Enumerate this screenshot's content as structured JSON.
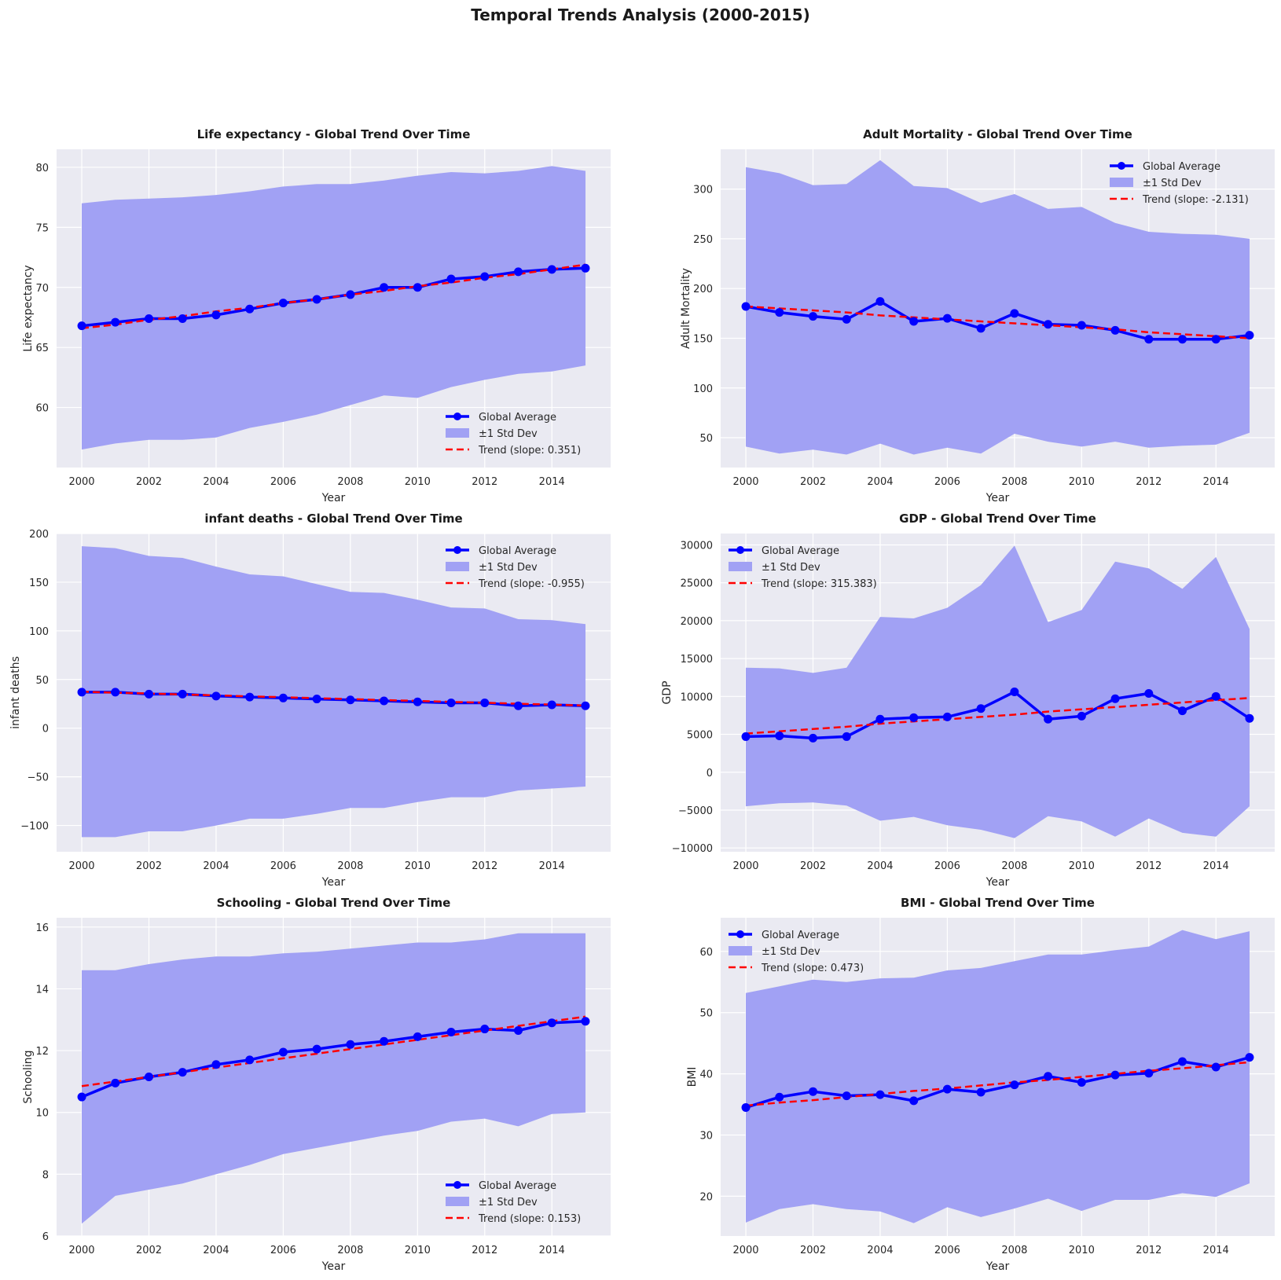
{
  "suptitle": "Temporal Trends Analysis (2000-2015)",
  "colors": {
    "panel_bg": "#EAEAF2",
    "grid": "#FFFFFF",
    "band": "#A1A1F4",
    "avg": "#0000FF",
    "trend": "#FF0000"
  },
  "years": [
    2000,
    2001,
    2002,
    2003,
    2004,
    2005,
    2006,
    2007,
    2008,
    2009,
    2010,
    2011,
    2012,
    2013,
    2014,
    2015
  ],
  "x_ticks": [
    2000,
    2002,
    2004,
    2006,
    2008,
    2010,
    2012,
    2014
  ],
  "chart_data": [
    {
      "type": "line",
      "title": "Life expectancy - Global Trend Over Time",
      "xlabel": "Year",
      "ylabel": "Life expectancy",
      "ylim": [
        55.0,
        81.5
      ],
      "yticks": [
        60,
        65,
        70,
        75,
        80
      ],
      "ytick_labels": [
        "60",
        "65",
        "70",
        "75",
        "80"
      ],
      "legend_loc": "lower-right",
      "series": [
        {
          "name": "Global Average",
          "values": [
            66.8,
            67.1,
            67.4,
            67.4,
            67.7,
            68.2,
            68.7,
            69.0,
            69.4,
            70.0,
            70.0,
            70.7,
            70.9,
            71.3,
            71.5,
            71.6
          ]
        },
        {
          "name": "±1 Std Dev",
          "upper": [
            77.0,
            77.3,
            77.4,
            77.5,
            77.7,
            78.0,
            78.4,
            78.6,
            78.6,
            78.9,
            79.3,
            79.6,
            79.5,
            79.7,
            80.1,
            79.7
          ],
          "lower": [
            56.5,
            57.0,
            57.3,
            57.3,
            57.5,
            58.3,
            58.8,
            59.4,
            60.2,
            61.0,
            60.8,
            61.7,
            62.3,
            62.8,
            63.0,
            63.5
          ]
        },
        {
          "name": "Trend (slope: 0.351)",
          "values": [
            66.6,
            66.9,
            67.3,
            67.6,
            68.0,
            68.3,
            68.7,
            69.0,
            69.4,
            69.7,
            70.1,
            70.4,
            70.8,
            71.1,
            71.5,
            71.9
          ]
        }
      ]
    },
    {
      "type": "line",
      "title": "Adult Mortality - Global Trend Over Time",
      "xlabel": "Year",
      "ylabel": "Adult Mortality",
      "ylim": [
        20,
        340
      ],
      "yticks": [
        50,
        100,
        150,
        200,
        250,
        300
      ],
      "ytick_labels": [
        "50",
        "100",
        "150",
        "200",
        "250",
        "300"
      ],
      "legend_loc": "upper-right",
      "series": [
        {
          "name": "Global Average",
          "values": [
            182,
            176,
            172,
            169,
            187,
            167,
            170,
            160,
            175,
            164,
            163,
            158,
            149,
            149,
            149,
            153
          ]
        },
        {
          "name": "±1 Std Dev",
          "upper": [
            322,
            316,
            304,
            305,
            329,
            303,
            301,
            286,
            295,
            280,
            282,
            266,
            257,
            255,
            254,
            250
          ],
          "lower": [
            41,
            34,
            38,
            33,
            44,
            33,
            40,
            34,
            54,
            46,
            41,
            46,
            40,
            42,
            43,
            55
          ]
        },
        {
          "name": "Trend (slope: -2.131)",
          "values": [
            182,
            180,
            178,
            176,
            173,
            171,
            169,
            167,
            165,
            163,
            161,
            159,
            156,
            154,
            152,
            150
          ]
        }
      ]
    },
    {
      "type": "line",
      "title": "infant deaths - Global Trend Over Time",
      "xlabel": "Year",
      "ylabel": "infant deaths",
      "ylim": [
        -127,
        200
      ],
      "yticks": [
        -100,
        -50,
        0,
        50,
        100,
        150,
        200
      ],
      "ytick_labels": [
        "−100",
        "−50",
        "0",
        "50",
        "100",
        "150",
        "200"
      ],
      "legend_loc": "upper-right",
      "series": [
        {
          "name": "Global Average",
          "values": [
            37,
            37,
            35,
            35,
            33,
            32,
            31,
            30,
            29,
            28,
            27,
            26,
            26,
            23,
            24,
            23
          ]
        },
        {
          "name": "±1 Std Dev",
          "upper": [
            187,
            185,
            177,
            175,
            166,
            158,
            156,
            148,
            140,
            139,
            132,
            124,
            123,
            112,
            111,
            107
          ],
          "lower": [
            -112,
            -112,
            -106,
            -106,
            -100,
            -93,
            -93,
            -88,
            -82,
            -82,
            -76,
            -71,
            -71,
            -64,
            -62,
            -60
          ]
        },
        {
          "name": "Trend (slope: -0.955)",
          "values": [
            37.5,
            36.5,
            35.6,
            34.6,
            33.7,
            32.7,
            31.8,
            30.8,
            29.9,
            28.9,
            28.0,
            27.0,
            26.1,
            25.1,
            24.2,
            23.2
          ]
        }
      ]
    },
    {
      "type": "line",
      "title": "GDP - Global Trend Over Time",
      "xlabel": "Year",
      "ylabel": "GDP",
      "ylim": [
        -10500,
        31500
      ],
      "yticks": [
        -10000,
        -5000,
        0,
        5000,
        10000,
        15000,
        20000,
        25000,
        30000
      ],
      "ytick_labels": [
        "−10000",
        "−5000",
        "0",
        "5000",
        "10000",
        "15000",
        "20000",
        "25000",
        "30000"
      ],
      "legend_loc": "upper-left",
      "series": [
        {
          "name": "Global Average",
          "values": [
            4700,
            4800,
            4500,
            4700,
            7000,
            7200,
            7300,
            8400,
            10600,
            7000,
            7400,
            9700,
            10400,
            8100,
            10000,
            7100
          ]
        },
        {
          "name": "±1 Std Dev",
          "upper": [
            13800,
            13700,
            13100,
            13800,
            20500,
            20300,
            21700,
            24700,
            29900,
            19800,
            21400,
            27800,
            26900,
            24200,
            28400,
            18900
          ],
          "lower": [
            -4500,
            -4100,
            -4000,
            -4400,
            -6400,
            -5900,
            -7000,
            -7600,
            -8700,
            -5800,
            -6500,
            -8500,
            -6100,
            -8000,
            -8500,
            -4500
          ]
        },
        {
          "name": "Trend (slope: 315.383)",
          "values": [
            5100,
            5400,
            5700,
            6000,
            6400,
            6700,
            7000,
            7300,
            7600,
            8000,
            8300,
            8600,
            8900,
            9200,
            9500,
            9800
          ]
        }
      ]
    },
    {
      "type": "line",
      "title": "Schooling - Global Trend Over Time",
      "xlabel": "Year",
      "ylabel": "Schooling",
      "ylim": [
        6.0,
        16.3
      ],
      "yticks": [
        6,
        8,
        10,
        12,
        14,
        16
      ],
      "ytick_labels": [
        "6",
        "8",
        "10",
        "12",
        "14",
        "16"
      ],
      "legend_loc": "lower-right",
      "series": [
        {
          "name": "Global Average",
          "values": [
            10.5,
            10.95,
            11.15,
            11.3,
            11.55,
            11.7,
            11.95,
            12.05,
            12.2,
            12.3,
            12.45,
            12.6,
            12.7,
            12.65,
            12.9,
            12.95
          ]
        },
        {
          "name": "±1 Std Dev",
          "upper": [
            14.6,
            14.6,
            14.8,
            14.95,
            15.05,
            15.05,
            15.15,
            15.2,
            15.3,
            15.4,
            15.5,
            15.5,
            15.6,
            15.8,
            15.8,
            15.8
          ],
          "lower": [
            6.4,
            7.3,
            7.5,
            7.7,
            8.0,
            8.3,
            8.65,
            8.85,
            9.05,
            9.25,
            9.4,
            9.7,
            9.8,
            9.55,
            9.95,
            10.0
          ]
        },
        {
          "name": "Trend (slope: 0.153)",
          "values": [
            10.85,
            11.0,
            11.15,
            11.3,
            11.45,
            11.6,
            11.75,
            11.9,
            12.05,
            12.2,
            12.35,
            12.5,
            12.65,
            12.8,
            12.95,
            13.1
          ]
        }
      ]
    },
    {
      "type": "line",
      "title": "BMI - Global Trend Over Time",
      "xlabel": "Year",
      "ylabel": "BMI",
      "ylim": [
        13.5,
        65.5
      ],
      "yticks": [
        20,
        30,
        40,
        50,
        60
      ],
      "ytick_labels": [
        "20",
        "30",
        "40",
        "50",
        "60"
      ],
      "legend_loc": "upper-left",
      "series": [
        {
          "name": "Global Average",
          "values": [
            34.5,
            36.2,
            37.1,
            36.4,
            36.6,
            35.6,
            37.5,
            37.0,
            38.2,
            39.6,
            38.6,
            39.8,
            40.1,
            42.0,
            41.1,
            42.7
          ]
        },
        {
          "name": "±1 Std Dev",
          "upper": [
            53.2,
            54.3,
            55.4,
            55.0,
            55.6,
            55.7,
            56.9,
            57.3,
            58.4,
            59.5,
            59.5,
            60.2,
            60.8,
            63.5,
            62.0,
            63.3
          ],
          "lower": [
            15.7,
            17.9,
            18.7,
            17.9,
            17.5,
            15.6,
            18.2,
            16.6,
            18.0,
            19.6,
            17.6,
            19.4,
            19.4,
            20.5,
            19.9,
            22.1
          ]
        },
        {
          "name": "Trend (slope: 0.473)",
          "values": [
            34.8,
            35.3,
            35.7,
            36.2,
            36.7,
            37.2,
            37.6,
            38.1,
            38.6,
            39.0,
            39.5,
            40.0,
            40.5,
            40.9,
            41.4,
            41.9
          ]
        }
      ]
    }
  ]
}
